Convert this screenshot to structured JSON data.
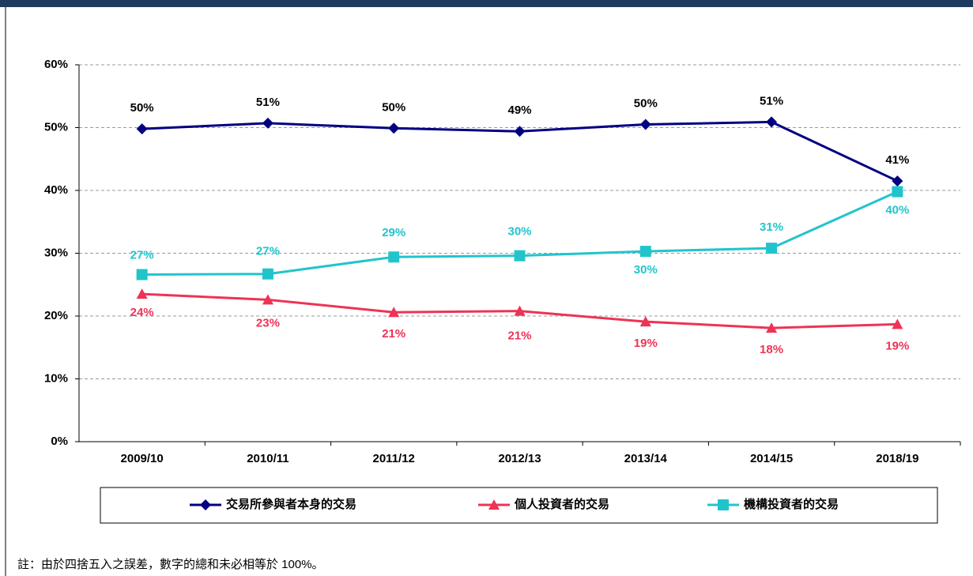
{
  "chart_data": {
    "type": "line",
    "categories": [
      "2009/10",
      "2010/11",
      "2011/12",
      "2012/13",
      "2013/14",
      "2014/15",
      "2018/19"
    ],
    "series": [
      {
        "name": "交易所參與者本身的交易",
        "color": "#000080",
        "marker": "diamond",
        "values": [
          49.8,
          50.7,
          49.9,
          49.4,
          50.5,
          50.9,
          41.5
        ],
        "value_labels": [
          "50%",
          "51%",
          "50%",
          "49%",
          "50%",
          "51%",
          "41%"
        ]
      },
      {
        "name": "個人投資者的交易",
        "color": "#ee3355",
        "marker": "triangle",
        "values": [
          23.5,
          22.6,
          20.6,
          20.8,
          19.1,
          18.1,
          18.7
        ],
        "value_labels": [
          "24%",
          "23%",
          "21%",
          "21%",
          "19%",
          "18%",
          "19%"
        ]
      },
      {
        "name": "機構投資者的交易",
        "color": "#22c4cc",
        "marker": "square",
        "values": [
          26.6,
          26.7,
          29.4,
          29.6,
          30.3,
          30.8,
          39.8
        ],
        "value_labels": [
          "27%",
          "27%",
          "29%",
          "30%",
          "30%",
          "31%",
          "40%"
        ]
      }
    ],
    "ylim": [
      0,
      60
    ],
    "yticks": [
      {
        "value": 0,
        "label": "0%"
      },
      {
        "value": 10,
        "label": "10%"
      },
      {
        "value": 20,
        "label": "20%"
      },
      {
        "value": 30,
        "label": "30%"
      },
      {
        "value": 40,
        "label": "40%"
      },
      {
        "value": 50,
        "label": "50%"
      },
      {
        "value": 60,
        "label": "60%"
      }
    ],
    "grid": true,
    "legend": "bottom",
    "note": "註：由於四捨五入之誤差，數字的總和未必相等於 100%。"
  }
}
